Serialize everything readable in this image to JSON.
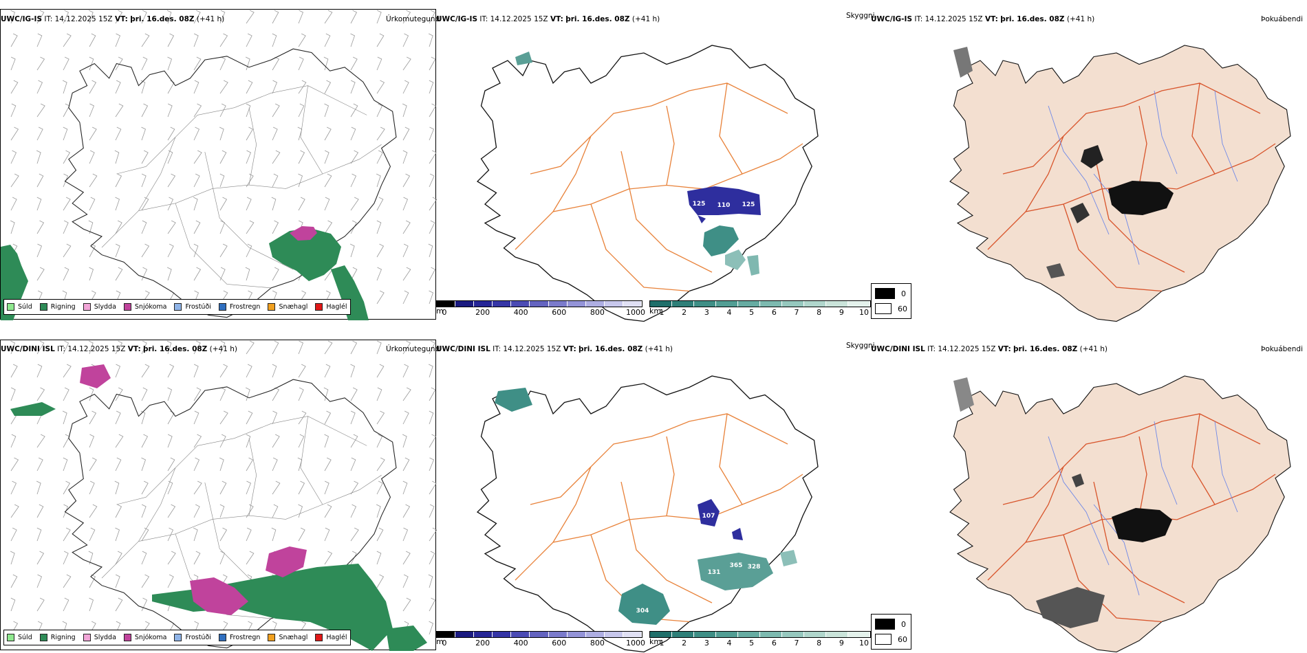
{
  "rows": [
    {
      "model": "UWC/IG-IS",
      "it_label": "IT:",
      "it_value": "14.12.2025 15Z",
      "vt_label": "VT:",
      "vt_value": "þri. 16.des. 08Z",
      "lead": "(+41 h)"
    },
    {
      "model": "UWC/DINI ISL",
      "it_label": "IT:",
      "it_value": "14.12.2025 15Z",
      "vt_label": "VT:",
      "vt_value": "þri. 16.des. 08Z",
      "lead": "(+41 h)"
    }
  ],
  "panel_titles": {
    "precip_type": "Úrkomutegund",
    "visibility": "Skyggni",
    "fog": "Þokuábendi"
  },
  "precip_legend": [
    {
      "label": "Súld",
      "color": "#8fe88f"
    },
    {
      "label": "Rigning",
      "color": "#2e8b57"
    },
    {
      "label": "Slydda",
      "color": "#f2a6d8"
    },
    {
      "label": "Snjókoma",
      "color": "#c0439c"
    },
    {
      "label": "Frostúði",
      "color": "#8fb4e8"
    },
    {
      "label": "Frostregn",
      "color": "#2f6fbf"
    },
    {
      "label": "Snæhagl",
      "color": "#f0a020"
    },
    {
      "label": "Haglél",
      "color": "#e01818"
    }
  ],
  "ceiling_bar": {
    "unit": "m",
    "ticks": [
      "0",
      "200",
      "400",
      "600",
      "800",
      "1000"
    ],
    "colors": [
      "#000000",
      "#1a1a80",
      "#252596",
      "#3535a6",
      "#4b4bb4",
      "#6464c0",
      "#7b7bcc",
      "#9494d8",
      "#aeaee2",
      "#c7c7ec",
      "#e0e0f4"
    ]
  },
  "visibility_bar": {
    "unit": "km",
    "ticks": [
      "1",
      "2",
      "3",
      "4",
      "5",
      "6",
      "7",
      "8",
      "9",
      "10"
    ],
    "colors": [
      "#1f6f6a",
      "#2e7f78",
      "#3f8f86",
      "#529e94",
      "#67aca2",
      "#7dbab0",
      "#96c8be",
      "#b0d6cc",
      "#cae4da",
      "#e4f2ec"
    ]
  },
  "fog_legend": [
    {
      "label": "0",
      "color": "#000000"
    },
    {
      "label": "60",
      "color": "#ffffff"
    }
  ],
  "ceiling_labels": {
    "top": [
      "125",
      "110",
      "125"
    ],
    "bottom": [
      "107",
      "131",
      "365",
      "328",
      "304"
    ]
  },
  "colors": {
    "land_fog": "#f3dfd0",
    "road": "#e8823a",
    "road_fog": "#d8552c",
    "river": "#6b86e8",
    "coast": "#111111",
    "rain": "#2e8b57",
    "snow": "#c0439c",
    "ceiling": "#2e2e9e",
    "vis": "#3f8f86"
  }
}
